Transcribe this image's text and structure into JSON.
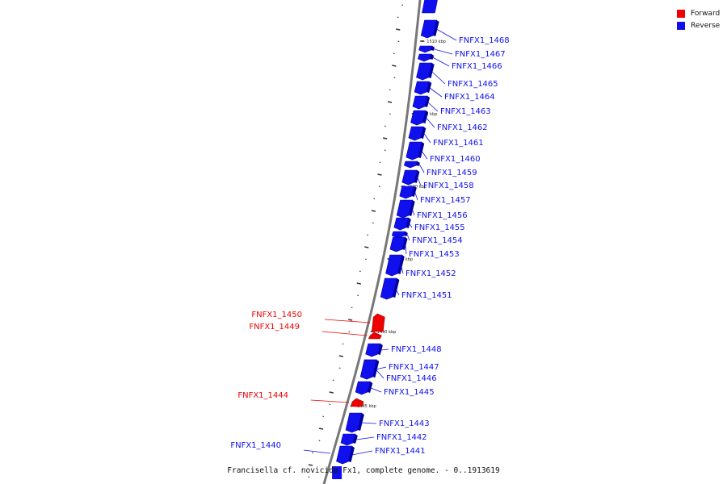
{
  "legend": {
    "items": [
      {
        "label": "Forward",
        "color": "#ee0000"
      },
      {
        "label": "Reverse",
        "color": "#1010ee"
      }
    ]
  },
  "caption": "Francisella cf. novicida Fx1, complete genome. - 0..1913619",
  "colors": {
    "forward": "#ee0000",
    "reverse": "#1010ee",
    "backbone": "#777777"
  },
  "kbp_marks": [
    "1510 kbp",
    "1505 kbp",
    "1500 kbp",
    "1495 kbp",
    "1490 kbp",
    "1485 kbp"
  ],
  "genes": [
    {
      "label": "FNFX1_1468",
      "strand": "reverse"
    },
    {
      "label": "FNFX1_1467",
      "strand": "reverse"
    },
    {
      "label": "FNFX1_1466",
      "strand": "reverse"
    },
    {
      "label": "FNFX1_1465",
      "strand": "reverse"
    },
    {
      "label": "FNFX1_1464",
      "strand": "reverse"
    },
    {
      "label": "FNFX1_1463",
      "strand": "reverse"
    },
    {
      "label": "FNFX1_1462",
      "strand": "reverse"
    },
    {
      "label": "FNFX1_1461",
      "strand": "reverse"
    },
    {
      "label": "FNFX1_1460",
      "strand": "reverse"
    },
    {
      "label": "FNFX1_1459",
      "strand": "reverse"
    },
    {
      "label": "FNFX1_1458",
      "strand": "reverse"
    },
    {
      "label": "FNFX1_1457",
      "strand": "reverse"
    },
    {
      "label": "FNFX1_1456",
      "strand": "reverse"
    },
    {
      "label": "FNFX1_1455",
      "strand": "reverse"
    },
    {
      "label": "FNFX1_1454",
      "strand": "reverse"
    },
    {
      "label": "FNFX1_1453",
      "strand": "reverse"
    },
    {
      "label": "FNFX1_1452",
      "strand": "reverse"
    },
    {
      "label": "FNFX1_1451",
      "strand": "reverse"
    },
    {
      "label": "FNFX1_1450",
      "strand": "forward"
    },
    {
      "label": "FNFX1_1449",
      "strand": "forward"
    },
    {
      "label": "FNFX1_1448",
      "strand": "reverse"
    },
    {
      "label": "FNFX1_1447",
      "strand": "reverse"
    },
    {
      "label": "FNFX1_1446",
      "strand": "reverse"
    },
    {
      "label": "FNFX1_1445",
      "strand": "reverse"
    },
    {
      "label": "FNFX1_1444",
      "strand": "forward"
    },
    {
      "label": "FNFX1_1443",
      "strand": "reverse"
    },
    {
      "label": "FNFX1_1442",
      "strand": "reverse"
    },
    {
      "label": "FNFX1_1441",
      "strand": "reverse"
    },
    {
      "label": "FNFX1_1440",
      "strand": "reverse"
    }
  ]
}
